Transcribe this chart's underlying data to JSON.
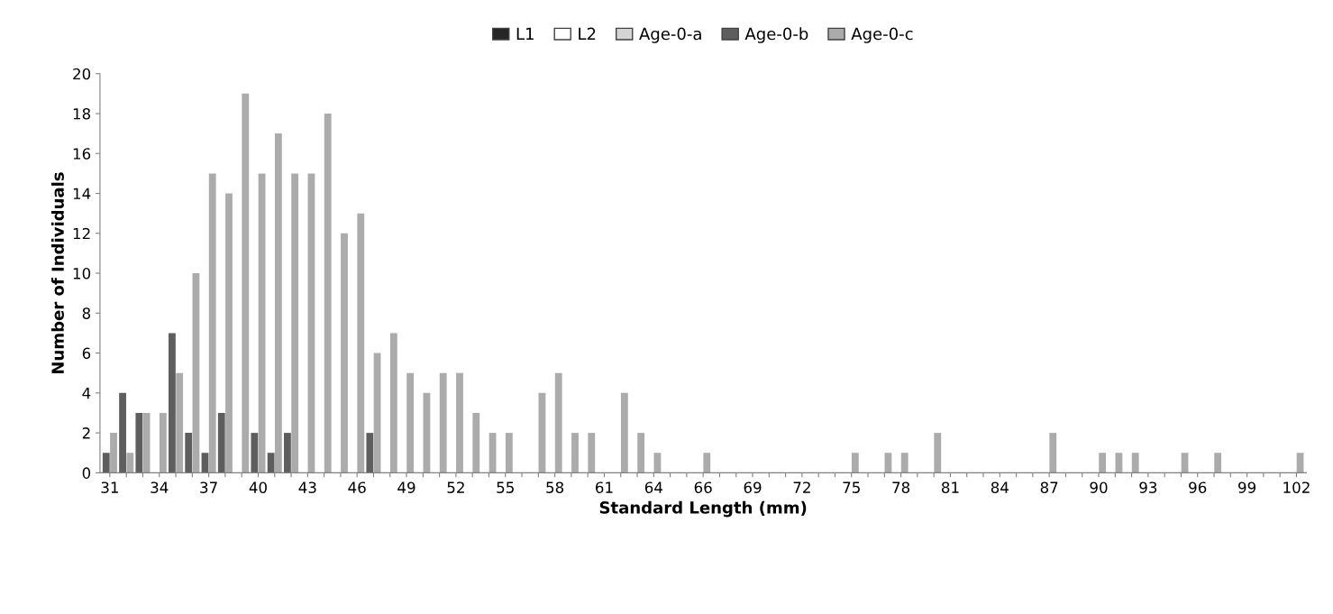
{
  "chart_data": {
    "type": "bar",
    "xlabel": "Standard Length (mm)",
    "ylabel": "Number of Individuals",
    "categories": [
      "31",
      null,
      null,
      "34",
      null,
      null,
      "37",
      null,
      null,
      "40",
      null,
      null,
      "43",
      null,
      null,
      "46",
      null,
      null,
      "49",
      null,
      null,
      "52",
      null,
      null,
      "55",
      null,
      null,
      "58",
      null,
      null,
      "61",
      null,
      null,
      "64",
      null,
      null,
      "66",
      null,
      null,
      "69",
      null,
      null,
      "72",
      null,
      null,
      "75",
      null,
      null,
      "78",
      null,
      null,
      "81",
      null,
      null,
      "84",
      null,
      null,
      "87",
      null,
      null,
      "90",
      null,
      null,
      "93",
      null,
      null,
      "96",
      null,
      null,
      "99",
      null,
      null,
      "102"
    ],
    "series": [
      {
        "name": "L1",
        "color": "#262626",
        "values": [
          null,
          null,
          null,
          null,
          null,
          null,
          null,
          null,
          null,
          null,
          null,
          null,
          null,
          null,
          null,
          null,
          null,
          null,
          null,
          null,
          null,
          null,
          null,
          null,
          null,
          null,
          null,
          null,
          null,
          null,
          null,
          null,
          null,
          null,
          null,
          null,
          null,
          null,
          null,
          null,
          null,
          null,
          null,
          null,
          null,
          null,
          null,
          null,
          null,
          null,
          null,
          null,
          null,
          null,
          null,
          null,
          null,
          null,
          null,
          null,
          null,
          null,
          null,
          null,
          null,
          null,
          null,
          null,
          null,
          null,
          null,
          null,
          null
        ]
      },
      {
        "name": "L2",
        "color": "#ffffff",
        "values": [
          null,
          null,
          null,
          null,
          null,
          null,
          null,
          null,
          null,
          null,
          null,
          null,
          null,
          null,
          null,
          null,
          null,
          null,
          null,
          null,
          null,
          null,
          null,
          null,
          null,
          null,
          null,
          null,
          null,
          null,
          null,
          null,
          null,
          null,
          null,
          null,
          null,
          null,
          null,
          null,
          null,
          null,
          null,
          null,
          null,
          null,
          null,
          null,
          null,
          null,
          null,
          null,
          null,
          null,
          null,
          null,
          null,
          null,
          null,
          null,
          null,
          null,
          null,
          null,
          null,
          null,
          null,
          null,
          null,
          null,
          null,
          null,
          null
        ]
      },
      {
        "name": "Age-0-a",
        "color": "#d4d4d4",
        "values": [
          null,
          null,
          null,
          null,
          null,
          null,
          null,
          null,
          null,
          null,
          null,
          null,
          null,
          null,
          null,
          null,
          null,
          null,
          null,
          null,
          null,
          null,
          null,
          null,
          null,
          null,
          null,
          null,
          null,
          null,
          null,
          null,
          null,
          null,
          null,
          null,
          null,
          null,
          null,
          null,
          null,
          null,
          null,
          null,
          null,
          null,
          null,
          null,
          null,
          null,
          null,
          null,
          null,
          null,
          null,
          null,
          null,
          null,
          null,
          null,
          null,
          null,
          null,
          null,
          null,
          null,
          null,
          null,
          null,
          null,
          null,
          null,
          null
        ]
      },
      {
        "name": "Age-0-b",
        "color": "#5e5e5e",
        "values": [
          1,
          4,
          3,
          0,
          7,
          2,
          1,
          3,
          0,
          2,
          1,
          2,
          0,
          0,
          0,
          0,
          2,
          0,
          0,
          0,
          0,
          0,
          0,
          0,
          0,
          0,
          0,
          0,
          0,
          0,
          0,
          0,
          0,
          0,
          0,
          0,
          0,
          0,
          0,
          0,
          0,
          0,
          0,
          0,
          0,
          0,
          0,
          0,
          0,
          0,
          0,
          0,
          0,
          0,
          0,
          0,
          0,
          0,
          0,
          0,
          0,
          0,
          0,
          0,
          0,
          0,
          0,
          0,
          0,
          0,
          0,
          0,
          0
        ]
      },
      {
        "name": "Age-0-c",
        "color": "#ababab",
        "values": [
          2,
          1,
          3,
          3,
          5,
          10,
          15,
          14,
          19,
          15,
          17,
          15,
          15,
          18,
          12,
          13,
          6,
          7,
          5,
          4,
          5,
          5,
          3,
          2,
          2,
          0,
          4,
          5,
          2,
          2,
          0,
          4,
          2,
          1,
          0,
          0,
          1,
          0,
          0,
          0,
          0,
          0,
          0,
          0,
          0,
          1,
          0,
          1,
          1,
          0,
          2,
          0,
          0,
          0,
          0,
          0,
          0,
          2,
          0,
          0,
          1,
          1,
          1,
          0,
          0,
          1,
          0,
          1,
          0,
          0,
          0,
          0,
          1
        ]
      }
    ],
    "ylim": [
      0,
      20
    ],
    "yticks": [
      0,
      2,
      4,
      6,
      8,
      10,
      12,
      14,
      16,
      18,
      20
    ],
    "grid": false,
    "legend": "top"
  }
}
